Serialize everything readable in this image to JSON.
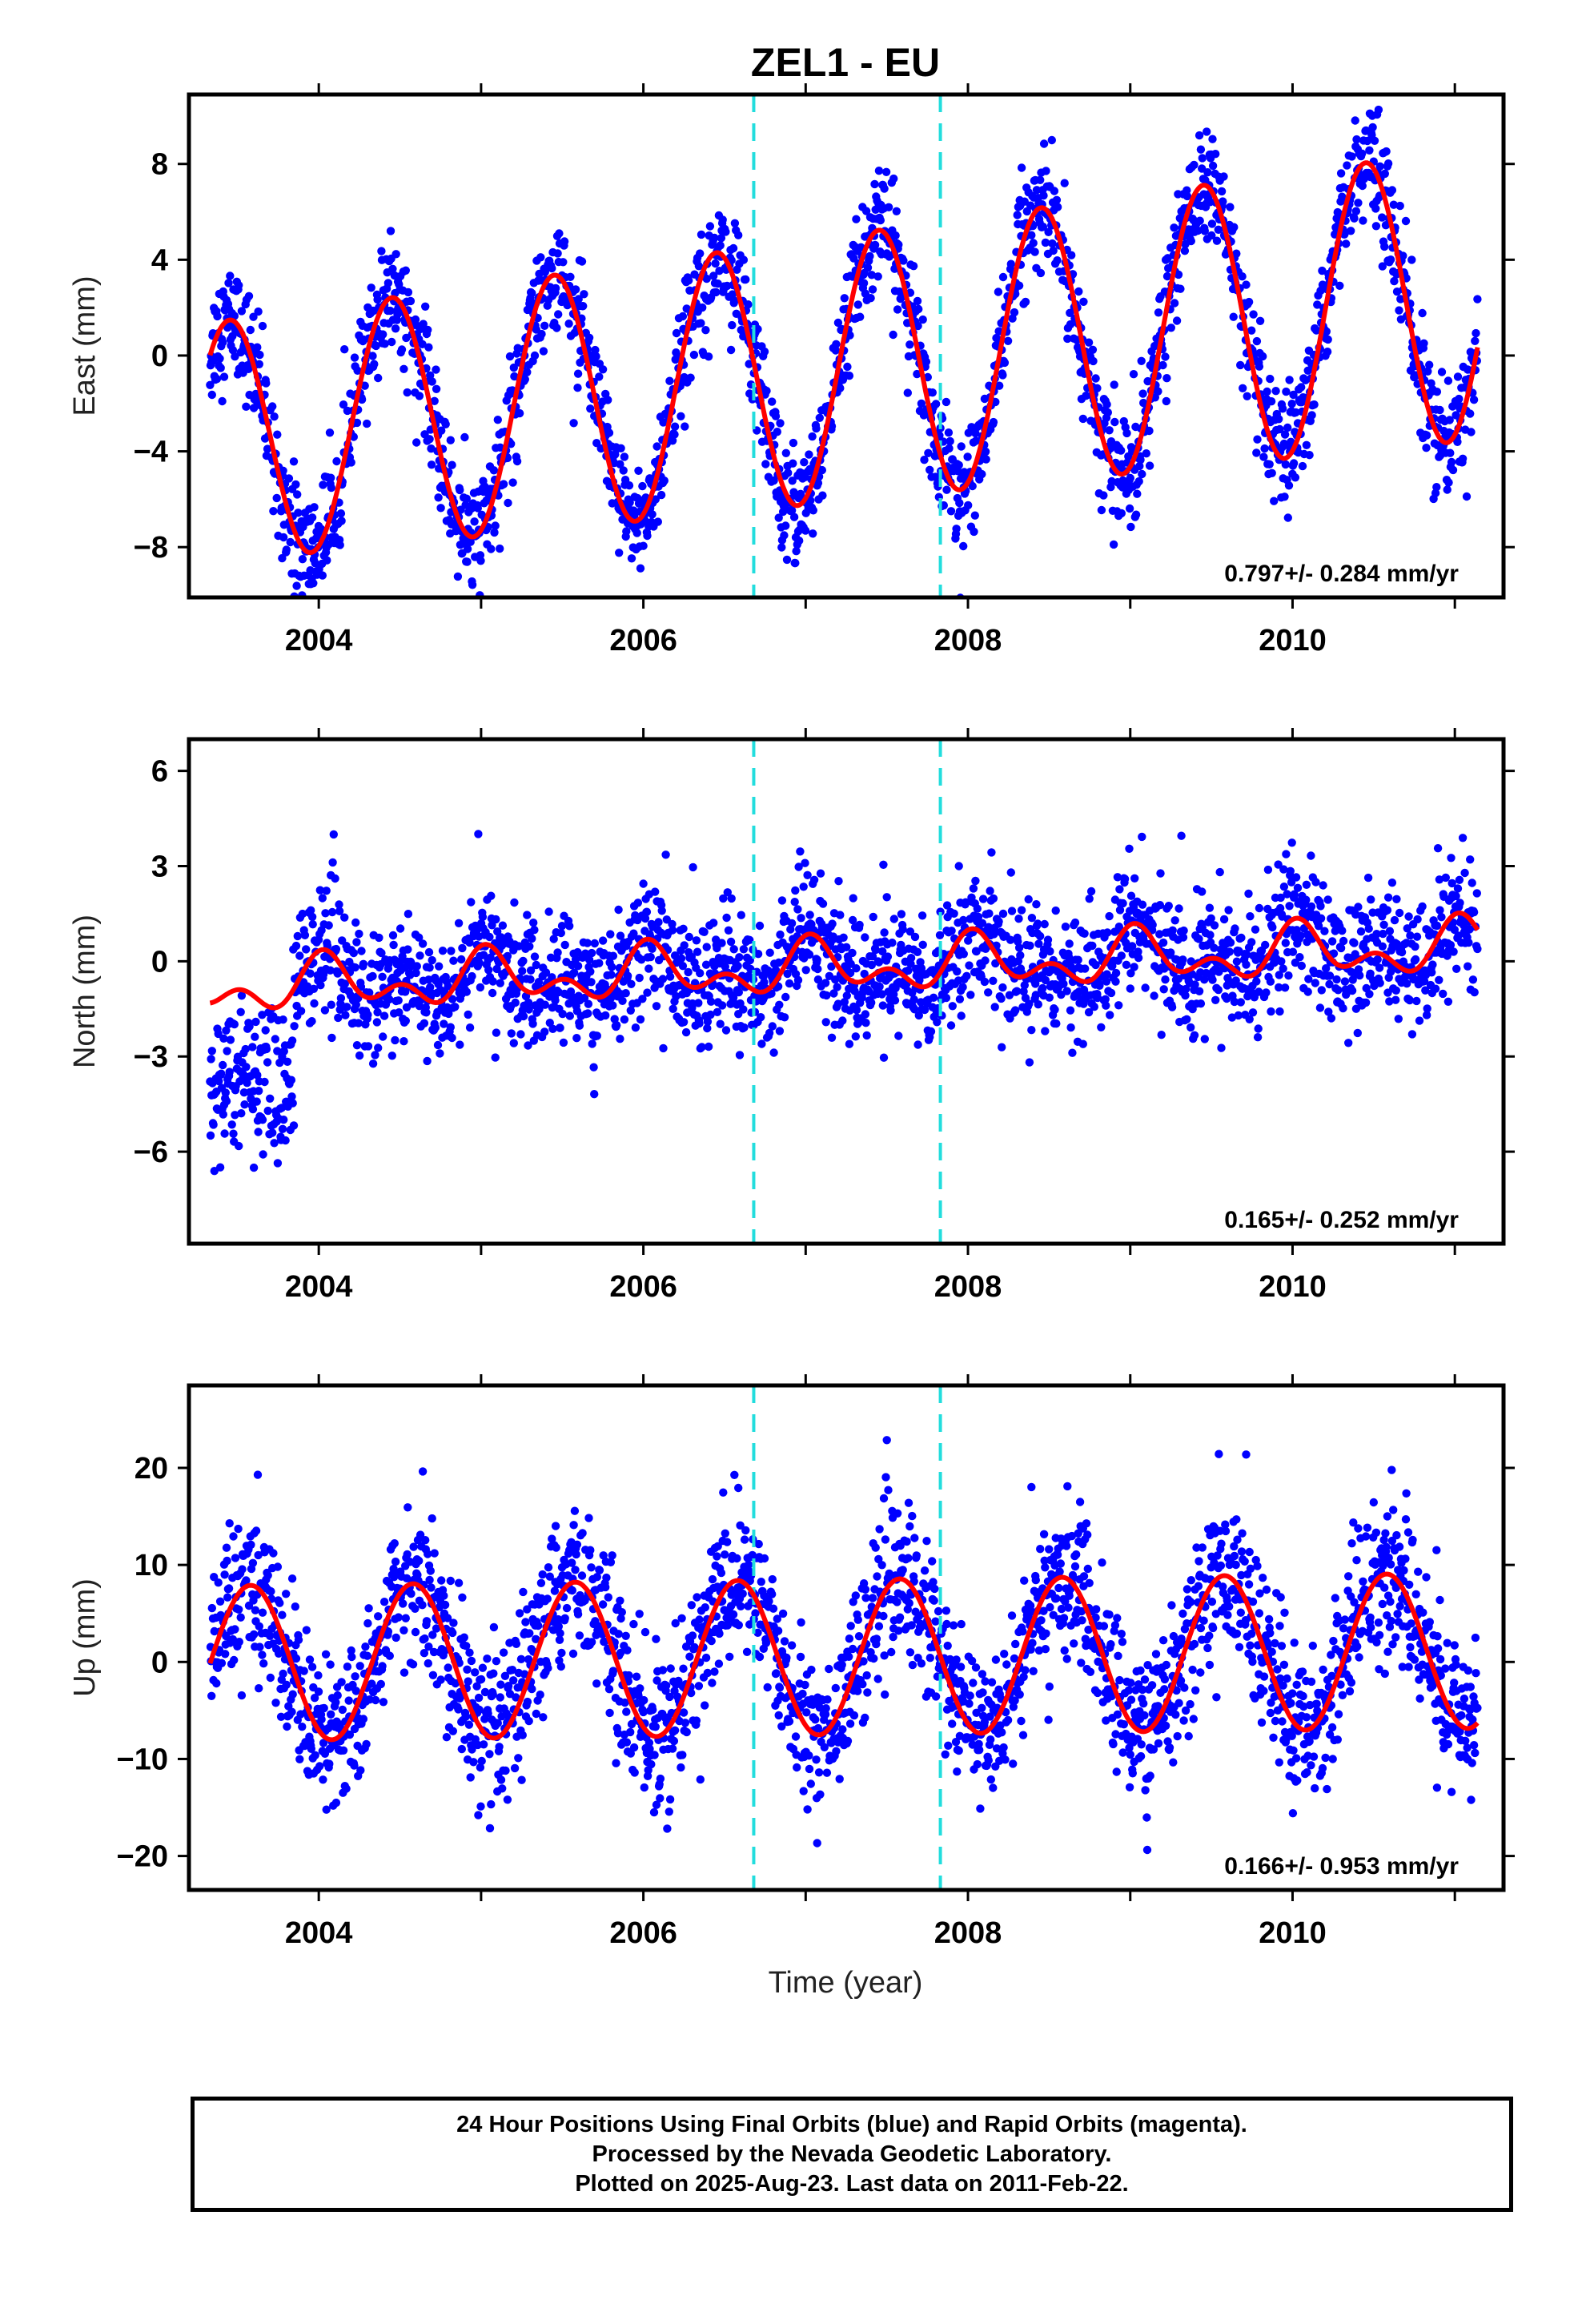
{
  "title": "ZEL1 - EU",
  "x_axis_title": "Time (year)",
  "caption": {
    "line1": "24 Hour Positions Using Final Orbits (blue) and Rapid Orbits (magenta).",
    "line2": "Processed by the Nevada Geodetic Laboratory.",
    "line3": "Plotted on 2025-Aug-23. Last data on 2011-Feb-22."
  },
  "colors": {
    "points": "#0000ff",
    "fit": "#ff0000",
    "breaks": "#22dddd",
    "frame": "#000000"
  },
  "chart_data": [
    {
      "type": "scatter",
      "panel": "East",
      "ylabel": "East (mm)",
      "xlim": [
        2003.2,
        2011.3
      ],
      "ylim": [
        -10.1,
        10.9
      ],
      "yticks": [
        -8,
        -4,
        0,
        4,
        8
      ],
      "xticks": [
        2004,
        2006,
        2008,
        2010
      ],
      "rate_text": "0.797+/- 0.284 mm/yr",
      "vertical_breaks": [
        2006.68,
        2007.83
      ],
      "x_start": 2003.33,
      "x_end": 2011.14,
      "fit": {
        "offset": -0.55,
        "trend": 0.797,
        "annual_amp": 5.0,
        "peak": 0.45,
        "amp_growth": 0.22,
        "noise_sd": 1.2
      },
      "series": [
        {
          "name": "Final Orbits",
          "kind": "daily positions"
        },
        {
          "name": "Model fit",
          "kind": "seasonal + trend"
        }
      ]
    },
    {
      "type": "scatter",
      "panel": "North",
      "ylabel": "North (mm)",
      "xlim": [
        2003.2,
        2011.3
      ],
      "ylim": [
        -8.9,
        7.0
      ],
      "yticks": [
        -6,
        -3,
        0,
        3,
        6
      ],
      "xticks": [
        2004,
        2006,
        2008,
        2010
      ],
      "rate_text": "0.165+/- 0.252 mm/yr",
      "vertical_breaks": [
        2006.68,
        2007.83
      ],
      "x_start": 2003.33,
      "x_end": 2011.14,
      "fit": {
        "offset": -0.2,
        "trend": 0.165,
        "annual_amp": 0.6,
        "semi_amp": 0.5,
        "peak": 0.05,
        "noise_sd": 1.0
      },
      "series": [
        {
          "name": "Final Orbits",
          "kind": "daily positions"
        },
        {
          "name": "Model fit",
          "kind": "seasonal + trend"
        }
      ]
    },
    {
      "type": "scatter",
      "panel": "Up",
      "ylabel": "Up (mm)",
      "xlim": [
        2003.2,
        2011.3
      ],
      "ylim": [
        -23.5,
        28.5
      ],
      "yticks": [
        -20,
        -10,
        0,
        10,
        20
      ],
      "xticks": [
        2004,
        2006,
        2008,
        2010
      ],
      "rate_text": "0.166+/- 0.953 mm/yr",
      "vertical_breaks": [
        2006.68,
        2007.83
      ],
      "x_start": 2003.33,
      "x_end": 2011.14,
      "fit": {
        "offset": 0.5,
        "trend": 0.166,
        "annual_amp": 8.0,
        "peak": 0.58,
        "amp_growth": 0.0,
        "noise_sd": 4.0
      },
      "series": [
        {
          "name": "Final Orbits",
          "kind": "daily positions"
        },
        {
          "name": "Model fit",
          "kind": "seasonal + trend"
        }
      ]
    }
  ]
}
